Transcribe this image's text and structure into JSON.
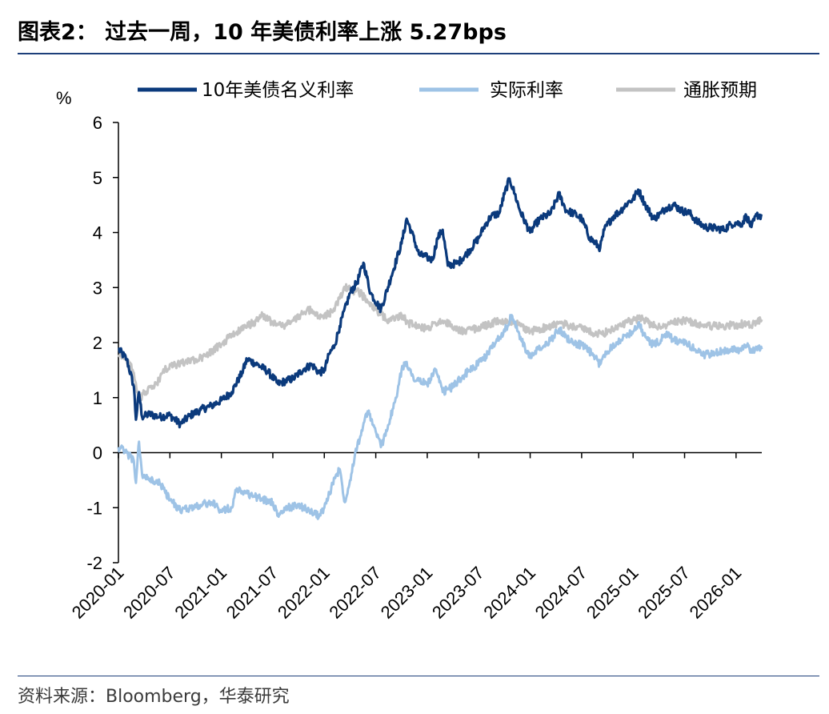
{
  "title": "图表2：  过去一周，10 年美债利率上涨 5.27bps",
  "source": "资料来源：Bloomberg，华泰研究",
  "chart_data": {
    "type": "line",
    "ylabel": "%",
    "ylim": [
      -2,
      6
    ],
    "yticks": [
      "-2",
      "-1",
      "0",
      "1",
      "2",
      "3",
      "4",
      "5",
      "6"
    ],
    "x_ticks": [
      "2020-01",
      "2020-07",
      "2021-01",
      "2021-07",
      "2022-01",
      "2022-07",
      "2023-01",
      "2023-07",
      "2024-01",
      "2024-07",
      "2025-01",
      "2025-07",
      "2026-01"
    ],
    "x_start": 2020.0,
    "x_end": 2026.25,
    "series": [
      {
        "name": "10年美债名义利率",
        "color": "#0b3a7c",
        "points": [
          [
            2020.0,
            1.88
          ],
          [
            2020.08,
            1.7
          ],
          [
            2020.15,
            1.2
          ],
          [
            2020.17,
            0.6
          ],
          [
            2020.2,
            1.1
          ],
          [
            2020.23,
            0.65
          ],
          [
            2020.3,
            0.7
          ],
          [
            2020.4,
            0.65
          ],
          [
            2020.5,
            0.68
          ],
          [
            2020.6,
            0.52
          ],
          [
            2020.7,
            0.68
          ],
          [
            2020.8,
            0.78
          ],
          [
            2020.9,
            0.85
          ],
          [
            2021.0,
            0.95
          ],
          [
            2021.1,
            1.1
          ],
          [
            2021.2,
            1.45
          ],
          [
            2021.25,
            1.7
          ],
          [
            2021.35,
            1.6
          ],
          [
            2021.45,
            1.48
          ],
          [
            2021.55,
            1.25
          ],
          [
            2021.62,
            1.3
          ],
          [
            2021.7,
            1.35
          ],
          [
            2021.8,
            1.52
          ],
          [
            2021.88,
            1.6
          ],
          [
            2021.95,
            1.45
          ],
          [
            2022.0,
            1.5
          ],
          [
            2022.05,
            1.8
          ],
          [
            2022.1,
            1.95
          ],
          [
            2022.15,
            2.3
          ],
          [
            2022.25,
            2.9
          ],
          [
            2022.32,
            3.1
          ],
          [
            2022.38,
            3.45
          ],
          [
            2022.45,
            2.9
          ],
          [
            2022.55,
            2.6
          ],
          [
            2022.65,
            3.2
          ],
          [
            2022.75,
            3.8
          ],
          [
            2022.8,
            4.25
          ],
          [
            2022.85,
            4.0
          ],
          [
            2022.92,
            3.6
          ],
          [
            2023.0,
            3.55
          ],
          [
            2023.05,
            3.5
          ],
          [
            2023.1,
            3.9
          ],
          [
            2023.15,
            4.05
          ],
          [
            2023.2,
            3.4
          ],
          [
            2023.3,
            3.45
          ],
          [
            2023.4,
            3.65
          ],
          [
            2023.5,
            3.9
          ],
          [
            2023.55,
            4.1
          ],
          [
            2023.62,
            4.3
          ],
          [
            2023.7,
            4.35
          ],
          [
            2023.75,
            4.7
          ],
          [
            2023.8,
            4.98
          ],
          [
            2023.85,
            4.7
          ],
          [
            2023.9,
            4.4
          ],
          [
            2024.0,
            4.0
          ],
          [
            2024.05,
            4.15
          ],
          [
            2024.1,
            4.25
          ],
          [
            2024.2,
            4.35
          ],
          [
            2024.28,
            4.7
          ],
          [
            2024.35,
            4.4
          ],
          [
            2024.42,
            4.35
          ],
          [
            2024.5,
            4.25
          ],
          [
            2024.58,
            3.9
          ],
          [
            2024.68,
            3.72
          ],
          [
            2024.72,
            4.05
          ],
          [
            2024.8,
            4.28
          ],
          [
            2024.88,
            4.4
          ],
          [
            2024.95,
            4.55
          ],
          [
            2025.0,
            4.6
          ],
          [
            2025.05,
            4.78
          ],
          [
            2025.12,
            4.5
          ],
          [
            2025.2,
            4.25
          ],
          [
            2025.27,
            4.35
          ],
          [
            2025.32,
            4.45
          ],
          [
            2025.4,
            4.5
          ],
          [
            2025.47,
            4.4
          ],
          [
            2025.55,
            4.35
          ],
          [
            2025.62,
            4.2
          ],
          [
            2025.7,
            4.1
          ],
          [
            2025.8,
            4.08
          ],
          [
            2025.88,
            4.05
          ],
          [
            2025.95,
            4.15
          ],
          [
            2026.0,
            4.18
          ],
          [
            2026.05,
            4.15
          ],
          [
            2026.1,
            4.3
          ],
          [
            2026.15,
            4.1
          ],
          [
            2026.2,
            4.32
          ],
          [
            2026.25,
            4.3
          ]
        ]
      },
      {
        "name": "实际利率",
        "color": "#9ec3e6",
        "points": [
          [
            2020.0,
            0.1
          ],
          [
            2020.08,
            0.0
          ],
          [
            2020.15,
            -0.15
          ],
          [
            2020.17,
            -0.55
          ],
          [
            2020.2,
            0.2
          ],
          [
            2020.23,
            -0.4
          ],
          [
            2020.3,
            -0.5
          ],
          [
            2020.4,
            -0.55
          ],
          [
            2020.5,
            -0.85
          ],
          [
            2020.6,
            -1.05
          ],
          [
            2020.7,
            -1.0
          ],
          [
            2020.8,
            -0.95
          ],
          [
            2020.9,
            -0.9
          ],
          [
            2021.0,
            -1.05
          ],
          [
            2021.1,
            -1.0
          ],
          [
            2021.15,
            -0.65
          ],
          [
            2021.2,
            -0.7
          ],
          [
            2021.3,
            -0.78
          ],
          [
            2021.4,
            -0.85
          ],
          [
            2021.5,
            -0.9
          ],
          [
            2021.55,
            -1.15
          ],
          [
            2021.65,
            -1.0
          ],
          [
            2021.75,
            -0.95
          ],
          [
            2021.85,
            -1.05
          ],
          [
            2021.95,
            -1.15
          ],
          [
            2022.0,
            -1.0
          ],
          [
            2022.05,
            -0.75
          ],
          [
            2022.1,
            -0.45
          ],
          [
            2022.15,
            -0.3
          ],
          [
            2022.2,
            -0.9
          ],
          [
            2022.25,
            -0.5
          ],
          [
            2022.3,
            0.0
          ],
          [
            2022.35,
            0.3
          ],
          [
            2022.42,
            0.75
          ],
          [
            2022.48,
            0.5
          ],
          [
            2022.55,
            0.1
          ],
          [
            2022.62,
            0.5
          ],
          [
            2022.7,
            1.0
          ],
          [
            2022.75,
            1.5
          ],
          [
            2022.8,
            1.65
          ],
          [
            2022.85,
            1.4
          ],
          [
            2022.92,
            1.3
          ],
          [
            2023.0,
            1.25
          ],
          [
            2023.08,
            1.5
          ],
          [
            2023.15,
            1.1
          ],
          [
            2023.25,
            1.2
          ],
          [
            2023.35,
            1.4
          ],
          [
            2023.45,
            1.55
          ],
          [
            2023.55,
            1.7
          ],
          [
            2023.62,
            1.9
          ],
          [
            2023.7,
            2.1
          ],
          [
            2023.78,
            2.3
          ],
          [
            2023.82,
            2.5
          ],
          [
            2023.88,
            2.2
          ],
          [
            2023.95,
            1.9
          ],
          [
            2024.0,
            1.72
          ],
          [
            2024.05,
            1.85
          ],
          [
            2024.12,
            1.9
          ],
          [
            2024.2,
            2.05
          ],
          [
            2024.28,
            2.25
          ],
          [
            2024.35,
            2.1
          ],
          [
            2024.42,
            2.0
          ],
          [
            2024.5,
            1.95
          ],
          [
            2024.6,
            1.8
          ],
          [
            2024.68,
            1.6
          ],
          [
            2024.72,
            1.78
          ],
          [
            2024.8,
            1.95
          ],
          [
            2024.88,
            2.05
          ],
          [
            2024.95,
            2.15
          ],
          [
            2025.0,
            2.2
          ],
          [
            2025.05,
            2.35
          ],
          [
            2025.12,
            2.1
          ],
          [
            2025.2,
            1.95
          ],
          [
            2025.27,
            2.05
          ],
          [
            2025.32,
            2.15
          ],
          [
            2025.4,
            2.05
          ],
          [
            2025.47,
            2.0
          ],
          [
            2025.55,
            1.95
          ],
          [
            2025.62,
            1.85
          ],
          [
            2025.7,
            1.78
          ],
          [
            2025.8,
            1.8
          ],
          [
            2025.88,
            1.85
          ],
          [
            2025.95,
            1.88
          ],
          [
            2026.0,
            1.9
          ],
          [
            2026.05,
            1.85
          ],
          [
            2026.1,
            1.95
          ],
          [
            2026.15,
            1.82
          ],
          [
            2026.2,
            1.9
          ],
          [
            2026.25,
            1.88
          ]
        ]
      },
      {
        "name": "通胀预期",
        "color": "#c3c3c3",
        "points": [
          [
            2020.0,
            1.78
          ],
          [
            2020.08,
            1.7
          ],
          [
            2020.15,
            1.45
          ],
          [
            2020.2,
            0.95
          ],
          [
            2020.25,
            1.1
          ],
          [
            2020.35,
            1.2
          ],
          [
            2020.45,
            1.5
          ],
          [
            2020.55,
            1.6
          ],
          [
            2020.65,
            1.65
          ],
          [
            2020.75,
            1.7
          ],
          [
            2020.85,
            1.75
          ],
          [
            2020.95,
            1.9
          ],
          [
            2021.05,
            2.05
          ],
          [
            2021.15,
            2.2
          ],
          [
            2021.25,
            2.3
          ],
          [
            2021.35,
            2.4
          ],
          [
            2021.4,
            2.5
          ],
          [
            2021.5,
            2.35
          ],
          [
            2021.6,
            2.3
          ],
          [
            2021.7,
            2.4
          ],
          [
            2021.8,
            2.55
          ],
          [
            2021.88,
            2.6
          ],
          [
            2021.95,
            2.45
          ],
          [
            2022.0,
            2.5
          ],
          [
            2022.08,
            2.55
          ],
          [
            2022.15,
            2.8
          ],
          [
            2022.2,
            3.0
          ],
          [
            2022.28,
            2.95
          ],
          [
            2022.35,
            2.9
          ],
          [
            2022.42,
            2.75
          ],
          [
            2022.5,
            2.6
          ],
          [
            2022.58,
            2.45
          ],
          [
            2022.65,
            2.4
          ],
          [
            2022.75,
            2.5
          ],
          [
            2022.82,
            2.35
          ],
          [
            2022.9,
            2.3
          ],
          [
            2023.0,
            2.25
          ],
          [
            2023.08,
            2.35
          ],
          [
            2023.15,
            2.4
          ],
          [
            2023.25,
            2.28
          ],
          [
            2023.35,
            2.2
          ],
          [
            2023.45,
            2.25
          ],
          [
            2023.55,
            2.3
          ],
          [
            2023.62,
            2.35
          ],
          [
            2023.7,
            2.4
          ],
          [
            2023.78,
            2.38
          ],
          [
            2023.85,
            2.35
          ],
          [
            2023.92,
            2.3
          ],
          [
            2024.0,
            2.2
          ],
          [
            2024.1,
            2.25
          ],
          [
            2024.2,
            2.3
          ],
          [
            2024.3,
            2.35
          ],
          [
            2024.4,
            2.3
          ],
          [
            2024.5,
            2.28
          ],
          [
            2024.6,
            2.18
          ],
          [
            2024.7,
            2.15
          ],
          [
            2024.8,
            2.25
          ],
          [
            2024.88,
            2.3
          ],
          [
            2024.95,
            2.38
          ],
          [
            2025.0,
            2.4
          ],
          [
            2025.08,
            2.45
          ],
          [
            2025.15,
            2.35
          ],
          [
            2025.22,
            2.3
          ],
          [
            2025.3,
            2.3
          ],
          [
            2025.38,
            2.35
          ],
          [
            2025.45,
            2.4
          ],
          [
            2025.55,
            2.38
          ],
          [
            2025.62,
            2.35
          ],
          [
            2025.7,
            2.3
          ],
          [
            2025.8,
            2.3
          ],
          [
            2025.88,
            2.28
          ],
          [
            2025.95,
            2.32
          ],
          [
            2026.0,
            2.3
          ],
          [
            2026.08,
            2.35
          ],
          [
            2026.15,
            2.3
          ],
          [
            2026.2,
            2.38
          ],
          [
            2026.25,
            2.42
          ]
        ]
      }
    ]
  }
}
